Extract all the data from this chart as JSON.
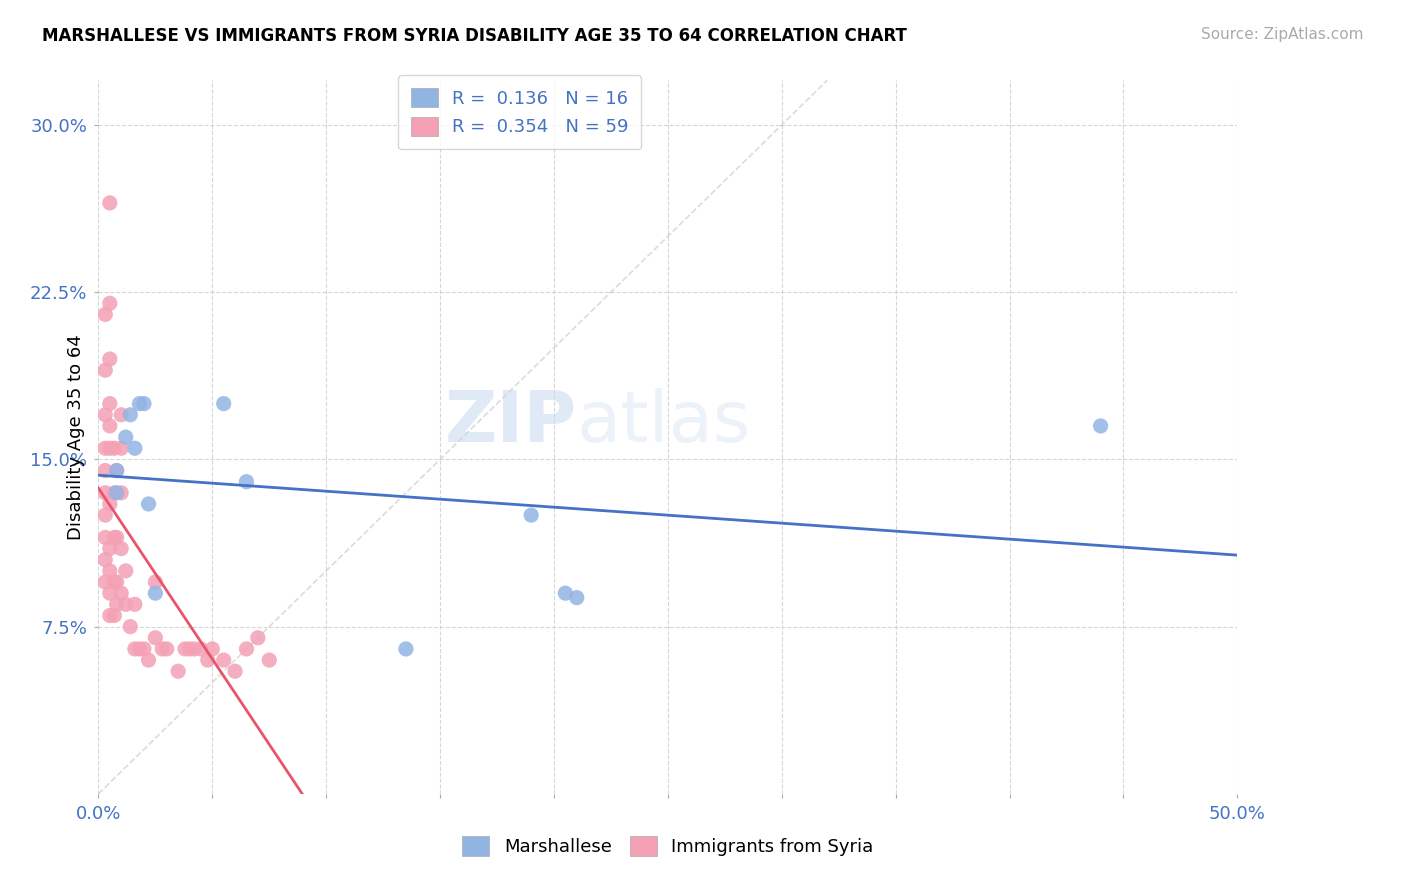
{
  "title": "MARSHALLESE VS IMMIGRANTS FROM SYRIA DISABILITY AGE 35 TO 64 CORRELATION CHART",
  "source": "Source: ZipAtlas.com",
  "ylabel": "Disability Age 35 to 64",
  "xlim": [
    0.0,
    0.5
  ],
  "ylim": [
    0.0,
    0.32
  ],
  "color_marshallese": "#92b4e3",
  "color_syria": "#f4a0b5",
  "color_trendline_marsh": "#4472c4",
  "color_trendline_syria": "#e8546a",
  "watermark_big": "ZIP",
  "watermark_small": "atlas",
  "marshallese_x": [
    0.008,
    0.008,
    0.012,
    0.014,
    0.016,
    0.018,
    0.02,
    0.022,
    0.025,
    0.055,
    0.065,
    0.135,
    0.19,
    0.205,
    0.21,
    0.44
  ],
  "marshallese_y": [
    0.135,
    0.145,
    0.16,
    0.17,
    0.155,
    0.175,
    0.175,
    0.13,
    0.09,
    0.175,
    0.14,
    0.065,
    0.125,
    0.09,
    0.088,
    0.165
  ],
  "syria_x": [
    0.003,
    0.003,
    0.003,
    0.003,
    0.003,
    0.003,
    0.003,
    0.003,
    0.003,
    0.003,
    0.005,
    0.005,
    0.005,
    0.005,
    0.005,
    0.005,
    0.005,
    0.005,
    0.005,
    0.005,
    0.005,
    0.007,
    0.007,
    0.007,
    0.007,
    0.007,
    0.008,
    0.008,
    0.008,
    0.008,
    0.01,
    0.01,
    0.01,
    0.01,
    0.01,
    0.012,
    0.012,
    0.014,
    0.016,
    0.016,
    0.018,
    0.02,
    0.022,
    0.025,
    0.025,
    0.028,
    0.03,
    0.035,
    0.038,
    0.04,
    0.042,
    0.045,
    0.048,
    0.05,
    0.055,
    0.06,
    0.065,
    0.07,
    0.075
  ],
  "syria_y": [
    0.095,
    0.105,
    0.115,
    0.125,
    0.135,
    0.145,
    0.155,
    0.17,
    0.19,
    0.215,
    0.08,
    0.09,
    0.1,
    0.11,
    0.13,
    0.155,
    0.165,
    0.175,
    0.195,
    0.22,
    0.265,
    0.08,
    0.095,
    0.115,
    0.135,
    0.155,
    0.085,
    0.095,
    0.115,
    0.145,
    0.09,
    0.11,
    0.135,
    0.155,
    0.17,
    0.085,
    0.1,
    0.075,
    0.065,
    0.085,
    0.065,
    0.065,
    0.06,
    0.07,
    0.095,
    0.065,
    0.065,
    0.055,
    0.065,
    0.065,
    0.065,
    0.065,
    0.06,
    0.065,
    0.06,
    0.055,
    0.065,
    0.07,
    0.06
  ],
  "syria_trend_x0": 0.0,
  "syria_trend_x1": 0.135,
  "marsh_trend_x0": 0.0,
  "marsh_trend_x1": 0.5
}
